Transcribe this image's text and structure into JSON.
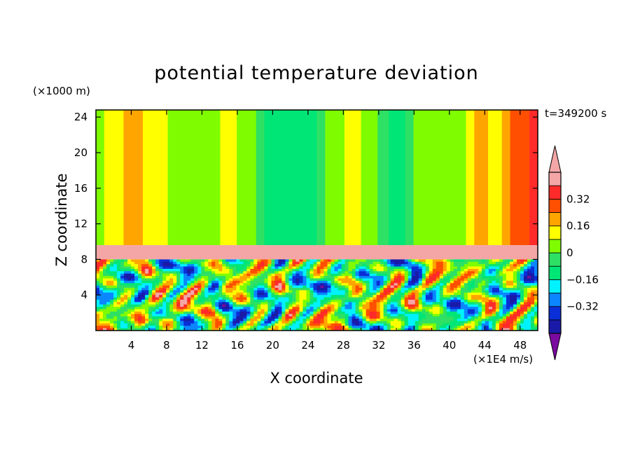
{
  "chart_data": {
    "type": "heatmap",
    "title": "potential temperature deviation",
    "time_label": "t=349200 s",
    "xlabel": "X coordinate",
    "ylabel": "Z coordinate",
    "x_unit": "(×1E4 m/s)",
    "y_unit": "(×1000 m)",
    "xlim": [
      0,
      50
    ],
    "ylim": [
      0,
      24.8
    ],
    "x_ticks": [
      4,
      8,
      12,
      16,
      20,
      24,
      28,
      32,
      36,
      40,
      44,
      48
    ],
    "x_tick_labels": [
      "4",
      "8",
      "12",
      "16",
      "20",
      "24",
      "28",
      "32",
      "36",
      "40",
      "44",
      "48"
    ],
    "y_ticks": [
      4,
      8,
      12,
      16,
      20,
      24
    ],
    "y_tick_labels": [
      "4",
      "8",
      "12",
      "16",
      "20",
      "24"
    ],
    "colorbar": {
      "levels": [
        -0.48,
        -0.4,
        -0.32,
        -0.24,
        -0.16,
        -0.08,
        0,
        0.08,
        0.16,
        0.24,
        0.32,
        0.4
      ],
      "colors": [
        "#1a1aa8",
        "#0a2fd6",
        "#0b86ff",
        "#00f2ff",
        "#00e676",
        "#2ee064",
        "#7ffc00",
        "#ffff00",
        "#ffa500",
        "#ff4f00",
        "#ff2a2a",
        "#f4a6a6"
      ],
      "under_color": "#7a0aa0",
      "over_color": "#f4a6a6",
      "tick_values": [
        0.32,
        0.16,
        0,
        -0.16,
        -0.32
      ],
      "tick_labels": [
        "0.32",
        "0.16",
        "0",
        "−0.16",
        "−0.32"
      ]
    },
    "field": {
      "upper_layer": {
        "z_range": [
          9.6,
          24.8
        ],
        "columns_x": [
          0,
          1,
          3,
          4.5,
          6,
          8,
          10,
          12,
          14,
          16,
          18,
          20,
          22,
          24,
          26,
          28,
          30,
          32,
          34,
          36,
          38,
          40,
          42,
          43.5,
          45,
          47,
          49,
          50
        ],
        "columns_value": [
          0.0,
          0.08,
          0.16,
          0.24,
          0.08,
          0.08,
          0.0,
          0.0,
          0.08,
          0.08,
          0.0,
          -0.16,
          -0.16,
          -0.16,
          0.0,
          0.08,
          0.08,
          0.0,
          -0.16,
          0.0,
          0.08,
          0.0,
          0.08,
          0.24,
          0.08,
          0.24,
          0.32,
          0.32
        ]
      },
      "inversion_layer": {
        "z_range": [
          8.0,
          9.6
        ],
        "value": 0.45
      },
      "mixed_layer": {
        "z_range": [
          0,
          8.0
        ],
        "value_range": [
          -0.5,
          0.45
        ]
      }
    }
  }
}
